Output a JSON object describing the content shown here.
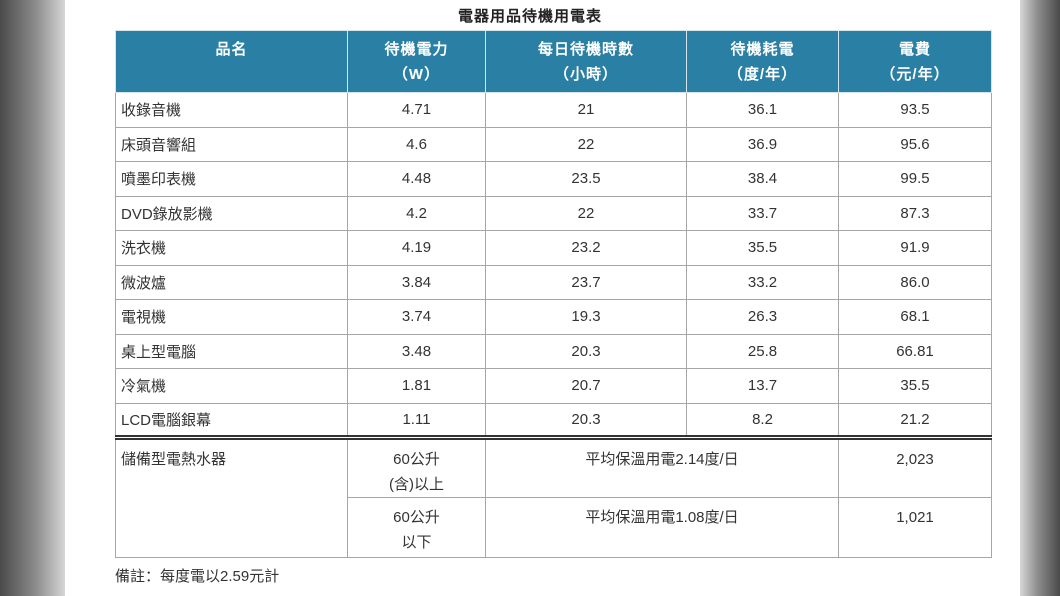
{
  "colors": {
    "header_bg": "#2a7fa4",
    "header_text": "#ffffff",
    "body_text": "#333333",
    "grid": "#a6a6a6",
    "section_divider": "#333333"
  },
  "chart_data": {
    "type": "table",
    "title": "電器用品待機用電表",
    "columns": [
      {
        "label": "品名"
      },
      {
        "label": "待機電力",
        "unit": "（W）"
      },
      {
        "label": "每日待機時數",
        "unit": "（小時）"
      },
      {
        "label": "待機耗電",
        "unit": "（度/年）"
      },
      {
        "label": "電費",
        "unit": "（元/年）"
      }
    ],
    "rows": [
      {
        "item": "收錄音機",
        "standby_power": "4.71",
        "daily_hours": "21",
        "annual_consumption": "36.1",
        "annual_cost": "93.5"
      },
      {
        "item": "床頭音響組",
        "standby_power": "4.6",
        "daily_hours": "22",
        "annual_consumption": "36.9",
        "annual_cost": "95.6"
      },
      {
        "item": "噴墨印表機",
        "standby_power": "4.48",
        "daily_hours": "23.5",
        "annual_consumption": "38.4",
        "annual_cost": "99.5"
      },
      {
        "item": "DVD錄放影機",
        "standby_power": "4.2",
        "daily_hours": "22",
        "annual_consumption": "33.7",
        "annual_cost": "87.3"
      },
      {
        "item": "洗衣機",
        "standby_power": "4.19",
        "daily_hours": "23.2",
        "annual_consumption": "35.5",
        "annual_cost": "91.9"
      },
      {
        "item": "微波爐",
        "standby_power": "3.84",
        "daily_hours": "23.7",
        "annual_consumption": "33.2",
        "annual_cost": "86.0"
      },
      {
        "item": "電視機",
        "standby_power": "3.74",
        "daily_hours": "19.3",
        "annual_consumption": "26.3",
        "annual_cost": "68.1"
      },
      {
        "item": "桌上型電腦",
        "standby_power": "3.48",
        "daily_hours": "20.3",
        "annual_consumption": "25.8",
        "annual_cost": "66.81"
      },
      {
        "item": "冷氣機",
        "standby_power": "1.81",
        "daily_hours": "20.7",
        "annual_consumption": "13.7",
        "annual_cost": "35.5"
      },
      {
        "item": "LCD電腦銀幕",
        "standby_power": "1.11",
        "daily_hours": "20.3",
        "annual_consumption": "8.2",
        "annual_cost": "21.2"
      }
    ],
    "water_heater": {
      "item": "儲備型電熱水器",
      "options": [
        {
          "capacity": "60公升",
          "qualifier": "(含)以上",
          "usage": "平均保溫用電2.14度/日",
          "annual_cost": "2,023"
        },
        {
          "capacity": "60公升",
          "qualifier": "以下",
          "usage": "平均保溫用電1.08度/日",
          "annual_cost": "1,021"
        }
      ]
    },
    "note": "備註：每度電以2.59元計"
  }
}
